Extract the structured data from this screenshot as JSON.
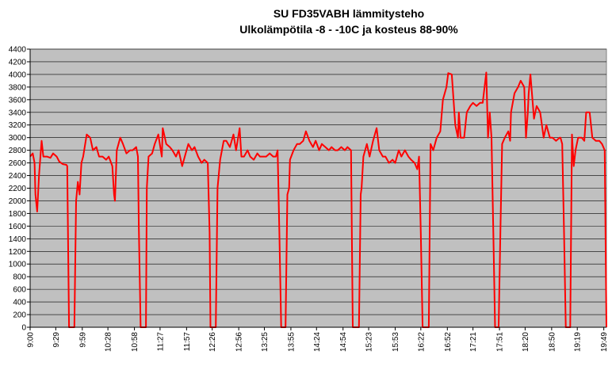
{
  "chart_data": {
    "type": "line",
    "title": "SU FD35VABH lämmitysteho",
    "subtitle": "Ulkolämpötila  -8 - -10C ja kosteus 88-90%",
    "color": "#ff0000",
    "grid": true,
    "x": [
      540,
      543,
      545,
      546,
      548,
      550,
      553,
      555,
      559,
      563,
      566,
      570,
      573,
      577,
      581,
      582,
      584,
      590,
      592,
      594,
      596,
      598,
      600,
      604,
      608,
      611,
      615,
      618,
      622,
      626,
      629,
      633,
      635,
      636,
      638,
      642,
      645,
      649,
      653,
      656,
      660,
      662,
      663,
      665,
      671,
      672,
      674,
      678,
      681,
      685,
      689,
      690,
      694,
      698,
      701,
      705,
      708,
      712,
      716,
      719,
      723,
      726,
      730,
      734,
      737,
      741,
      743,
      744,
      750,
      752,
      755,
      759,
      762,
      766,
      770,
      773,
      777,
      779,
      782,
      786,
      789,
      793,
      797,
      800,
      804,
      807,
      811,
      815,
      818,
      820,
      822,
      824,
      829,
      831,
      833,
      834,
      838,
      842,
      845,
      849,
      852,
      856,
      860,
      863,
      867,
      870,
      874,
      878,
      881,
      885,
      888,
      892,
      896,
      899,
      903,
      905,
      912,
      914,
      915,
      917,
      921,
      924,
      928,
      932,
      935,
      939,
      942,
      946,
      950,
      953,
      957,
      960,
      964,
      968,
      971,
      975,
      978,
      980,
      982,
      984,
      991,
      993,
      996,
      1000,
      1004,
      1007,
      1011,
      1013,
      1017,
      1021,
      1024,
      1025,
      1027,
      1031,
      1034,
      1038,
      1041,
      1045,
      1049,
      1052,
      1056,
      1058,
      1060,
      1062,
      1064,
      1066,
      1070,
      1072,
      1074,
      1077,
      1081,
      1083,
      1084,
      1088,
      1092,
      1095,
      1099,
      1101,
      1103,
      1104,
      1106,
      1110,
      1113,
      1117,
      1121,
      1124,
      1128,
      1131,
      1135,
      1139,
      1140,
      1142,
      1144,
      1146,
      1151,
      1153,
      1155,
      1157,
      1160,
      1164,
      1167,
      1169,
      1173,
      1176,
      1180,
      1184,
      1187,
      1190,
      1192
    ],
    "values": [
      2700,
      2750,
      2600,
      2100,
      1830,
      2400,
      2950,
      2700,
      2700,
      2680,
      2750,
      2700,
      2620,
      2580,
      2570,
      2550,
      0,
      0,
      2000,
      2300,
      2100,
      2600,
      2700,
      3050,
      3000,
      2800,
      2850,
      2700,
      2700,
      2650,
      2700,
      2550,
      2100,
      2000,
      2800,
      3000,
      2900,
      2750,
      2800,
      2800,
      2850,
      2700,
      1600,
      0,
      0,
      2200,
      2700,
      2750,
      2900,
      3050,
      2700,
      3150,
      2900,
      2850,
      2800,
      2700,
      2800,
      2550,
      2750,
      2900,
      2800,
      2850,
      2700,
      2600,
      2650,
      2600,
      1500,
      0,
      0,
      2200,
      2650,
      2950,
      2950,
      2850,
      3050,
      2800,
      3150,
      2700,
      2700,
      2800,
      2700,
      2650,
      2750,
      2700,
      2700,
      2700,
      2750,
      2700,
      2700,
      2800,
      1500,
      0,
      0,
      2100,
      2200,
      2650,
      2800,
      2900,
      2900,
      2950,
      3100,
      2950,
      2850,
      2950,
      2800,
      2900,
      2850,
      2800,
      2850,
      2800,
      2800,
      2850,
      2800,
      2850,
      2800,
      0,
      0,
      2100,
      2200,
      2700,
      2900,
      2700,
      2950,
      3150,
      2800,
      2700,
      2700,
      2600,
      2650,
      2600,
      2800,
      2700,
      2800,
      2700,
      2650,
      2600,
      2500,
      2700,
      1500,
      0,
      0,
      2900,
      2800,
      3000,
      3100,
      3600,
      3800,
      4020,
      4000,
      3200,
      3000,
      3400,
      3000,
      3000,
      3400,
      3500,
      3550,
      3500,
      3550,
      3550,
      4030,
      3000,
      3400,
      3000,
      1500,
      0,
      0,
      1500,
      2900,
      3000,
      3100,
      2950,
      3400,
      3700,
      3800,
      3900,
      3800,
      3000,
      3400,
      3700,
      4000,
      3300,
      3500,
      3400,
      3000,
      3200,
      3000,
      3000,
      2950,
      3000,
      3000,
      2900,
      1500,
      0,
      0,
      3050,
      2550,
      2800,
      3000,
      3000,
      2950,
      3400,
      3400,
      3000,
      2950,
      2950,
      2900,
      2800,
      0
    ],
    "xlim": [
      540,
      1192
    ],
    "xticks": [
      {
        "value": 540,
        "label": "9:00"
      },
      {
        "value": 569,
        "label": "9:29"
      },
      {
        "value": 599,
        "label": "9:59"
      },
      {
        "value": 628,
        "label": "10:28"
      },
      {
        "value": 658,
        "label": "10:58"
      },
      {
        "value": 687,
        "label": "11:27"
      },
      {
        "value": 717,
        "label": "11:57"
      },
      {
        "value": 746,
        "label": "12:26"
      },
      {
        "value": 776,
        "label": "12:56"
      },
      {
        "value": 805,
        "label": "13:25"
      },
      {
        "value": 835,
        "label": "13:55"
      },
      {
        "value": 864,
        "label": "14:24"
      },
      {
        "value": 894,
        "label": "14:54"
      },
      {
        "value": 923,
        "label": "15:23"
      },
      {
        "value": 953,
        "label": "15:53"
      },
      {
        "value": 982,
        "label": "16:22"
      },
      {
        "value": 1012,
        "label": "16:52"
      },
      {
        "value": 1041,
        "label": "17:21"
      },
      {
        "value": 1071,
        "label": "17:51"
      },
      {
        "value": 1100,
        "label": "18:20"
      },
      {
        "value": 1130,
        "label": "18:50"
      },
      {
        "value": 1159,
        "label": "19:19"
      },
      {
        "value": 1189,
        "label": "19:49"
      }
    ],
    "ylim": [
      0,
      4400
    ],
    "yticks": [
      0,
      200,
      400,
      600,
      800,
      1000,
      1200,
      1400,
      1600,
      1800,
      2000,
      2200,
      2400,
      2600,
      2800,
      3000,
      3200,
      3400,
      3600,
      3800,
      4000,
      4200,
      4400
    ]
  }
}
